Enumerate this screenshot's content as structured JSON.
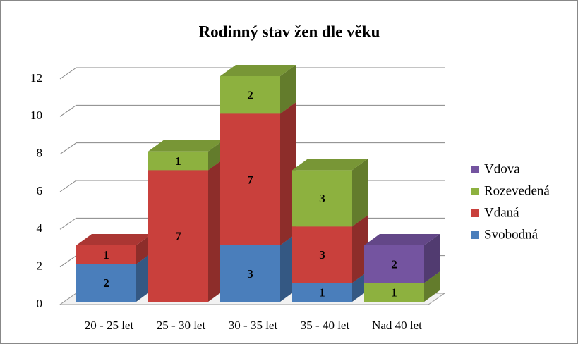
{
  "chart_data": {
    "type": "bar3d_stacked",
    "title": "Rodinný stav žen dle věku",
    "categories": [
      "20 - 25 let",
      "25 - 30 let",
      "30 - 35 let",
      "35 - 40 let",
      "Nad 40 let"
    ],
    "series": [
      {
        "name": "Svobodná",
        "color": "#4a7ebb",
        "values": [
          2,
          0,
          3,
          1,
          0
        ]
      },
      {
        "name": "Vdaná",
        "color": "#c9403c",
        "values": [
          1,
          7,
          7,
          3,
          0
        ]
      },
      {
        "name": "Rozevedená",
        "color": "#8db13f",
        "values": [
          0,
          1,
          2,
          3,
          1
        ]
      },
      {
        "name": "Vdova",
        "color": "#7454a0",
        "values": [
          0,
          0,
          0,
          0,
          2
        ]
      }
    ],
    "ylim": [
      0,
      12
    ],
    "yticks": [
      0,
      2,
      4,
      6,
      8,
      10,
      12
    ],
    "grid": true,
    "legend": "right"
  }
}
